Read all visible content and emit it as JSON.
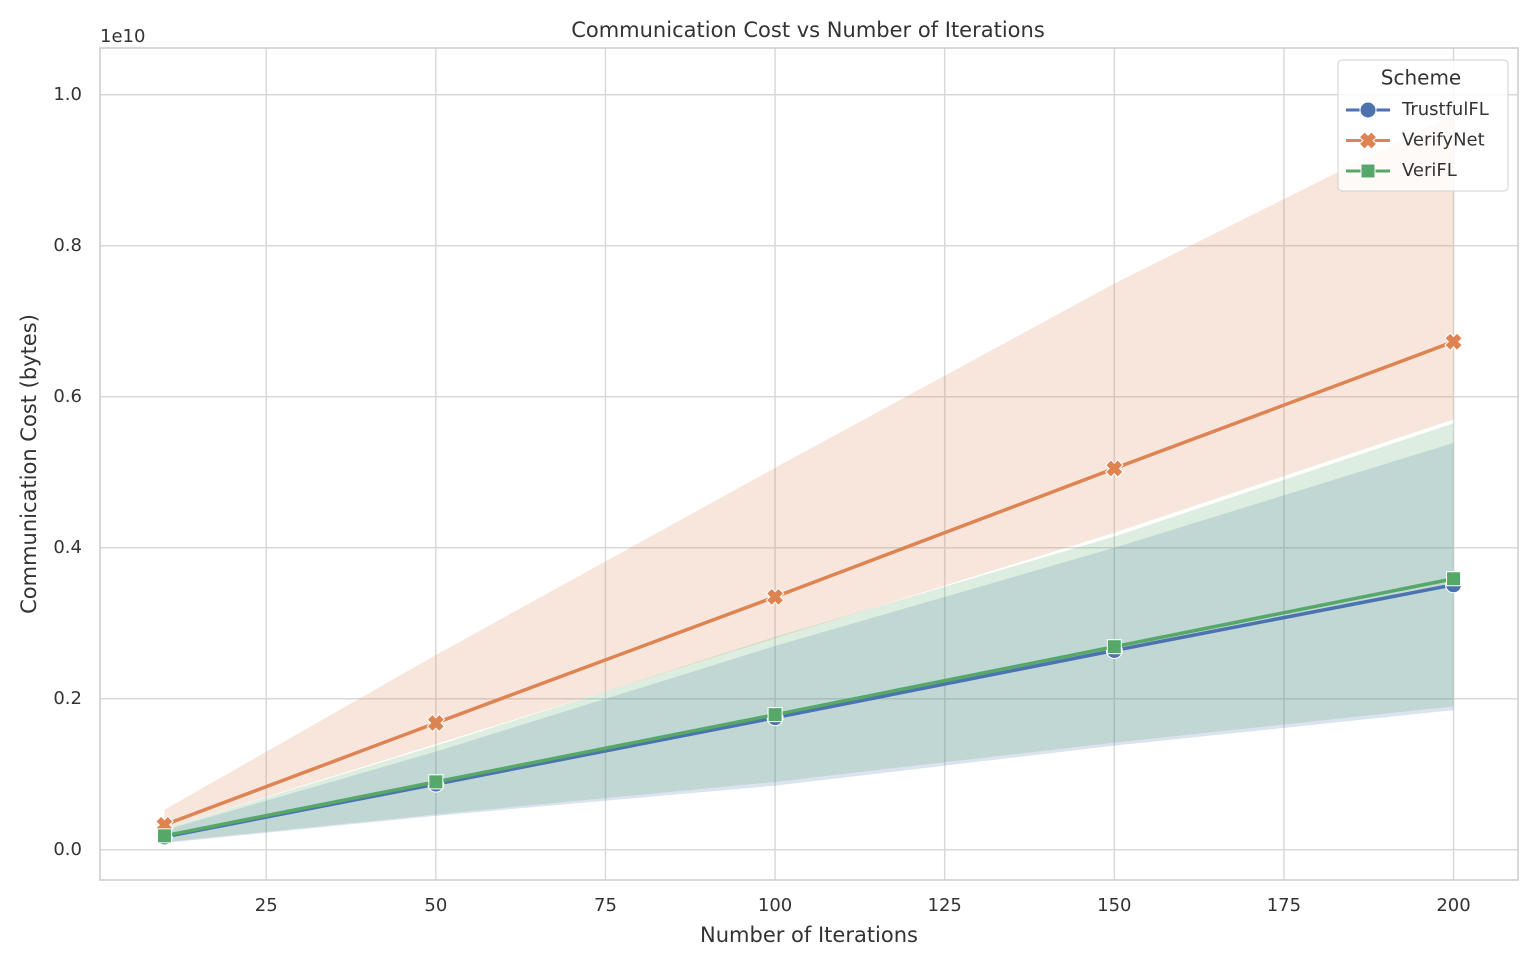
{
  "chart_data": {
    "type": "line",
    "title": "Communication Cost vs Number of Iterations",
    "xlabel": "Number of Iterations",
    "ylabel": "Communication Cost (bytes)",
    "offset_label": "1e10",
    "x": [
      10,
      50,
      100,
      150,
      200
    ],
    "series": [
      {
        "name": "TrustfulFL",
        "color": "#4c72b0",
        "marker": "circle",
        "values": [
          0.017,
          0.087,
          0.175,
          0.264,
          0.351
        ],
        "lower": [
          0.009,
          0.045,
          0.085,
          0.138,
          0.185
        ],
        "upper": [
          0.026,
          0.13,
          0.27,
          0.4,
          0.539
        ]
      },
      {
        "name": "VerifyNet",
        "color": "#dd8452",
        "marker": "x",
        "values": [
          0.033,
          0.168,
          0.335,
          0.505,
          0.673
        ],
        "lower": [
          0.028,
          0.14,
          0.28,
          0.42,
          0.57
        ],
        "upper": [
          0.053,
          0.258,
          0.506,
          0.75,
          0.974
        ]
      },
      {
        "name": "VeriFL",
        "color": "#55a868",
        "marker": "square",
        "values": [
          0.0185,
          0.09,
          0.179,
          0.269,
          0.359
        ],
        "lower": [
          0.01,
          0.047,
          0.09,
          0.142,
          0.19
        ],
        "upper": [
          0.028,
          0.138,
          0.282,
          0.415,
          0.565
        ]
      }
    ],
    "xlim": [
      0.5,
      209.5
    ],
    "ylim": [
      -0.04,
      1.062
    ],
    "xticks": [
      25,
      50,
      75,
      100,
      125,
      150,
      175,
      200
    ],
    "yticks": [
      {
        "value": 0,
        "label": "0.0"
      },
      0.2,
      0.4,
      0.6,
      0.8,
      {
        "value": 1,
        "label": "1.0"
      }
    ],
    "grid": true,
    "legend": {
      "title": "Scheme",
      "loc": "upper right"
    }
  }
}
